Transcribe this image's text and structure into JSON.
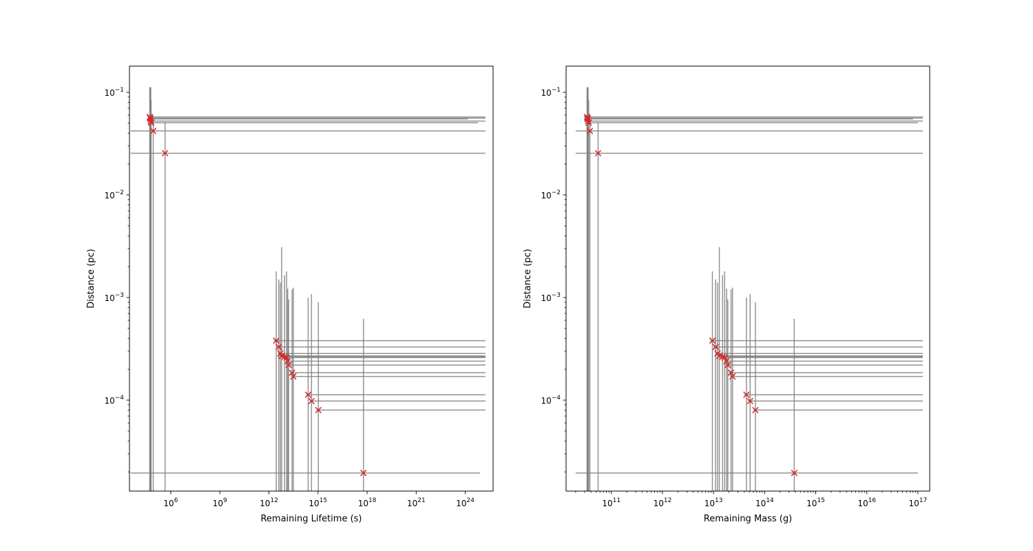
{
  "chart_data": [
    {
      "type": "scatter",
      "xlabel": "Remaining Lifetime (s)",
      "ylabel": "Distance (pc)",
      "x_scale": "log",
      "y_scale": "log",
      "xlim": [
        3000.0,
        5e+25
      ],
      "ylim": [
        1.3e-05,
        0.18
      ],
      "x_ticks": [
        {
          "value": 1000000.0,
          "base": "10",
          "exp": "6"
        },
        {
          "value": 1000000000.0,
          "base": "10",
          "exp": "9"
        },
        {
          "value": 1000000000000.0,
          "base": "10",
          "exp": "12"
        },
        {
          "value": 1000000000000000.0,
          "base": "10",
          "exp": "15"
        },
        {
          "value": 1e+18,
          "base": "10",
          "exp": "18"
        },
        {
          "value": 1e+21,
          "base": "10",
          "exp": "21"
        },
        {
          "value": 1e+24,
          "base": "10",
          "exp": "24"
        }
      ],
      "y_ticks": [
        {
          "value": 0.0001,
          "base": "10",
          "exp": "−4"
        },
        {
          "value": 0.001,
          "base": "10",
          "exp": "−3"
        },
        {
          "value": 0.01,
          "base": "10",
          "exp": "−2"
        },
        {
          "value": 0.1,
          "base": "10",
          "exp": "−1"
        }
      ],
      "marker_color": "#d62728",
      "errorbar_color": "#808080",
      "points": [
        {
          "x": 52000.0,
          "y": 0.0575,
          "xerr": [
            46000.0,
            1.7e+25
          ],
          "yerr": [
            1.3e-05,
            0.112
          ]
        },
        {
          "x": 55000.0,
          "y": 0.056,
          "xerr": [
            48000.0,
            1.7e+25
          ],
          "yerr": [
            1.3e-05,
            0.112
          ]
        },
        {
          "x": 58000.0,
          "y": 0.055,
          "xerr": [
            50000.0,
            1.5e+24
          ],
          "yerr": [
            1.3e-05,
            0.112
          ]
        },
        {
          "x": 60000.0,
          "y": 0.0525,
          "xerr": [
            52000.0,
            1.7e+25
          ],
          "yerr": [
            1.3e-05,
            0.112
          ]
        },
        {
          "x": 63000.0,
          "y": 0.0505,
          "xerr": [
            54000.0,
            6e+24
          ],
          "yerr": [
            1.3e-05,
            0.084
          ]
        },
        {
          "x": 85000.0,
          "y": 0.042,
          "xerr": [
            3500.0,
            1.7e+25
          ],
          "yerr": [
            1.3e-05,
            0.056
          ]
        },
        {
          "x": 450000.0,
          "y": 0.0255,
          "xerr": [
            3500.0,
            1.7e+25
          ],
          "yerr": [
            1.3e-05,
            0.051
          ]
        },
        {
          "x": 2800000000000.0,
          "y": 0.00038,
          "xerr": [
            2000000000000.0,
            1.7e+25
          ],
          "yerr": [
            1.3e-05,
            0.0018
          ]
        },
        {
          "x": 4000000000000.0,
          "y": 0.00033,
          "xerr": [
            3000000000000.0,
            1.7e+25
          ],
          "yerr": [
            1.3e-05,
            0.0015
          ]
        },
        {
          "x": 5000000000000.0,
          "y": 0.000285,
          "xerr": [
            3500000000000.0,
            1.7e+25
          ],
          "yerr": [
            1.3e-05,
            0.0014
          ]
        },
        {
          "x": 6000000000000.0,
          "y": 0.00027,
          "xerr": [
            4000000000000.0,
            1.7e+25
          ],
          "yerr": [
            1.3e-05,
            0.0031
          ]
        },
        {
          "x": 9000000000000.0,
          "y": 0.000265,
          "xerr": [
            6000000000000.0,
            1.7e+25
          ],
          "yerr": [
            1.3e-05,
            0.00165
          ]
        },
        {
          "x": 12000000000000.0,
          "y": 0.00026,
          "xerr": [
            8000000000000.0,
            1.7e+25
          ],
          "yerr": [
            1.3e-05,
            0.0018
          ]
        },
        {
          "x": 14000000000000.0,
          "y": 0.00024,
          "xerr": [
            10000000000000.0,
            1.7e+25
          ],
          "yerr": [
            1.3e-05,
            0.00122
          ]
        },
        {
          "x": 16000000000000.0,
          "y": 0.00022,
          "xerr": [
            11000000000000.0,
            1.7e+25
          ],
          "yerr": [
            1.3e-05,
            0.00096
          ]
        },
        {
          "x": 26000000000000.0,
          "y": 0.000185,
          "xerr": [
            20000000000000.0,
            1.7e+25
          ],
          "yerr": [
            1.3e-05,
            0.0012
          ]
        },
        {
          "x": 31000000000000.0,
          "y": 0.00017,
          "xerr": [
            24000000000000.0,
            1.7e+25
          ],
          "yerr": [
            1.3e-05,
            0.00125
          ]
        },
        {
          "x": 250000000000000.0,
          "y": 0.000113,
          "xerr": [
            190000000000000.0,
            1.7e+25
          ],
          "yerr": [
            1.3e-05,
            0.001
          ]
        },
        {
          "x": 400000000000000.0,
          "y": 9.8e-05,
          "xerr": [
            310000000000000.0,
            1.7e+25
          ],
          "yerr": [
            1.3e-05,
            0.00108
          ]
        },
        {
          "x": 1050000000000000.0,
          "y": 8e-05,
          "xerr": [
            800000000000000.0,
            1.7e+25
          ],
          "yerr": [
            1.3e-05,
            0.0009
          ]
        },
        {
          "x": 6e+17,
          "y": 1.95e-05,
          "xerr": [
            3500.0,
            8e+24
          ],
          "yerr": [
            1.3e-05,
            0.00062
          ]
        }
      ]
    },
    {
      "type": "scatter",
      "xlabel": "Remaining Mass (g)",
      "ylabel": "Distance (pc)",
      "x_scale": "log",
      "y_scale": "log",
      "xlim": [
        13000000000.0,
        1.7e+17
      ],
      "ylim": [
        1.3e-05,
        0.18
      ],
      "x_ticks": [
        {
          "value": 100000000000.0,
          "base": "10",
          "exp": "11"
        },
        {
          "value": 1000000000000.0,
          "base": "10",
          "exp": "12"
        },
        {
          "value": 10000000000000.0,
          "base": "10",
          "exp": "13"
        },
        {
          "value": 100000000000000.0,
          "base": "10",
          "exp": "14"
        },
        {
          "value": 1000000000000000.0,
          "base": "10",
          "exp": "15"
        },
        {
          "value": 1e+16,
          "base": "10",
          "exp": "16"
        },
        {
          "value": 1e+17,
          "base": "10",
          "exp": "17"
        }
      ],
      "y_ticks": [
        {
          "value": 0.0001,
          "base": "10",
          "exp": "−4"
        },
        {
          "value": 0.001,
          "base": "10",
          "exp": "−3"
        },
        {
          "value": 0.01,
          "base": "10",
          "exp": "−2"
        },
        {
          "value": 0.1,
          "base": "10",
          "exp": "−1"
        }
      ],
      "marker_color": "#d62728",
      "errorbar_color": "#808080",
      "points": [
        {
          "x": 33500000000.0,
          "y": 0.0575,
          "xerr": [
            29000000000.0,
            1.25e+17
          ],
          "yerr": [
            1.3e-05,
            0.112
          ]
        },
        {
          "x": 34000000000.0,
          "y": 0.056,
          "xerr": [
            30000000000.0,
            1.25e+17
          ],
          "yerr": [
            1.3e-05,
            0.112
          ]
        },
        {
          "x": 34500000000.0,
          "y": 0.055,
          "xerr": [
            30500000000.0,
            8e+16
          ],
          "yerr": [
            1.3e-05,
            0.112
          ]
        },
        {
          "x": 35000000000.0,
          "y": 0.0525,
          "xerr": [
            31000000000.0,
            1.25e+17
          ],
          "yerr": [
            1.3e-05,
            0.112
          ]
        },
        {
          "x": 36000000000.0,
          "y": 0.0505,
          "xerr": [
            31500000000.0,
            1e+17
          ],
          "yerr": [
            1.3e-05,
            0.084
          ]
        },
        {
          "x": 38000000000.0,
          "y": 0.042,
          "xerr": [
            20000000000.0,
            1.25e+17
          ],
          "yerr": [
            1.3e-05,
            0.056
          ]
        },
        {
          "x": 55000000000.0,
          "y": 0.0255,
          "xerr": [
            20000000000.0,
            1.25e+17
          ],
          "yerr": [
            1.3e-05,
            0.051
          ]
        },
        {
          "x": 9500000000000.0,
          "y": 0.00038,
          "xerr": [
            8700000000000.0,
            1.25e+17
          ],
          "yerr": [
            1.3e-05,
            0.0018
          ]
        },
        {
          "x": 11000000000000.0,
          "y": 0.00033,
          "xerr": [
            10000000000000.0,
            1.25e+17
          ],
          "yerr": [
            1.3e-05,
            0.0015
          ]
        },
        {
          "x": 12000000000000.0,
          "y": 0.000285,
          "xerr": [
            11000000000000.0,
            1.25e+17
          ],
          "yerr": [
            1.3e-05,
            0.0014
          ]
        },
        {
          "x": 13000000000000.0,
          "y": 0.00027,
          "xerr": [
            12000000000000.0,
            1.25e+17
          ],
          "yerr": [
            1.3e-05,
            0.0031
          ]
        },
        {
          "x": 15000000000000.0,
          "y": 0.000265,
          "xerr": [
            13500000000000.0,
            1.25e+17
          ],
          "yerr": [
            1.3e-05,
            0.00165
          ]
        },
        {
          "x": 16500000000000.0,
          "y": 0.00026,
          "xerr": [
            15000000000000.0,
            1.25e+17
          ],
          "yerr": [
            1.3e-05,
            0.0018
          ]
        },
        {
          "x": 18000000000000.0,
          "y": 0.00024,
          "xerr": [
            16000000000000.0,
            1.25e+17
          ],
          "yerr": [
            1.3e-05,
            0.00122
          ]
        },
        {
          "x": 19000000000000.0,
          "y": 0.00022,
          "xerr": [
            17000000000000.0,
            1.25e+17
          ],
          "yerr": [
            1.3e-05,
            0.00096
          ]
        },
        {
          "x": 22000000000000.0,
          "y": 0.000185,
          "xerr": [
            20000000000000.0,
            1.25e+17
          ],
          "yerr": [
            1.3e-05,
            0.0012
          ]
        },
        {
          "x": 23500000000000.0,
          "y": 0.00017,
          "xerr": [
            21000000000000.0,
            1.25e+17
          ],
          "yerr": [
            1.3e-05,
            0.00125
          ]
        },
        {
          "x": 44000000000000.0,
          "y": 0.000113,
          "xerr": [
            40000000000000.0,
            1.25e+17
          ],
          "yerr": [
            1.3e-05,
            0.001
          ]
        },
        {
          "x": 52000000000000.0,
          "y": 9.8e-05,
          "xerr": [
            47000000000000.0,
            1.25e+17
          ],
          "yerr": [
            1.3e-05,
            0.00108
          ]
        },
        {
          "x": 66000000000000.0,
          "y": 8e-05,
          "xerr": [
            60000000000000.0,
            1.25e+17
          ],
          "yerr": [
            1.3e-05,
            0.0009
          ]
        },
        {
          "x": 380000000000000.0,
          "y": 1.95e-05,
          "xerr": [
            20000000000.0,
            1e+17
          ],
          "yerr": [
            1.3e-05,
            0.00062
          ]
        }
      ]
    }
  ]
}
